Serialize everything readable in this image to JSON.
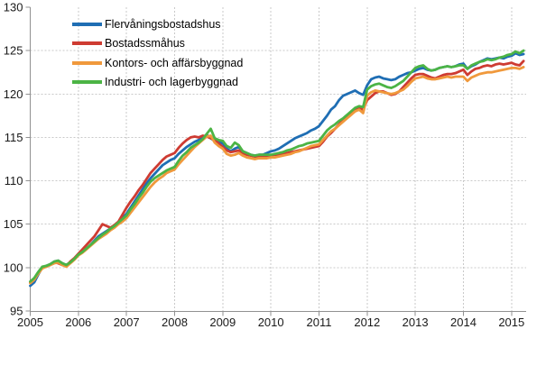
{
  "chart_data": {
    "type": "line",
    "title": "",
    "x_axis": {
      "label": "",
      "start_year": 2005,
      "months_per_point": 1,
      "tick_years": [
        2005,
        2006,
        2007,
        2008,
        2009,
        2010,
        2011,
        2012,
        2013,
        2014,
        2015
      ],
      "tick_labels": [
        "2005",
        "2006",
        "2007",
        "2008",
        "2009",
        "2010",
        "2011",
        "2012",
        "2013",
        "2014",
        "2015"
      ],
      "range": [
        2005.0,
        2015.3
      ]
    },
    "y_axis": {
      "label": "",
      "min": 95,
      "max": 130,
      "tick_step": 5,
      "ticks": [
        95,
        100,
        105,
        110,
        115,
        120,
        125,
        130
      ],
      "tick_labels": [
        "95",
        "100",
        "105",
        "110",
        "115",
        "120",
        "125",
        "130"
      ]
    },
    "grid": true,
    "legend_position": "top-left-inside",
    "series": [
      {
        "key": "flervaningsbostadshus",
        "name": "Flervåningsbostadshus",
        "color": "#1f6eb4",
        "values": [
          97.9,
          98.3,
          99.2,
          100.0,
          100.2,
          100.4,
          100.7,
          100.8,
          100.5,
          100.3,
          100.6,
          101.0,
          101.5,
          101.8,
          102.2,
          102.6,
          103.1,
          103.6,
          103.9,
          104.2,
          104.5,
          104.8,
          105.2,
          105.7,
          106.2,
          106.9,
          107.6,
          108.3,
          109.0,
          109.7,
          110.3,
          110.8,
          111.3,
          111.8,
          112.1,
          112.4,
          112.6,
          113.1,
          113.5,
          113.9,
          114.2,
          114.5,
          114.7,
          115.0,
          115.3,
          114.9,
          114.6,
          114.5,
          114.3,
          113.7,
          113.4,
          113.7,
          113.9,
          113.4,
          113.2,
          113.0,
          112.9,
          113.0,
          113.0,
          113.2,
          113.4,
          113.5,
          113.7,
          114.0,
          114.3,
          114.6,
          114.9,
          115.1,
          115.3,
          115.5,
          115.8,
          116.0,
          116.3,
          116.9,
          117.5,
          118.2,
          118.6,
          119.3,
          119.8,
          120.0,
          120.2,
          120.4,
          120.1,
          119.9,
          121.0,
          121.7,
          121.9,
          122.0,
          121.8,
          121.7,
          121.6,
          121.7,
          122.0,
          122.2,
          122.4,
          122.5,
          122.7,
          122.9,
          123.0,
          122.8,
          122.7,
          122.8,
          123.0,
          123.1,
          123.2,
          123.1,
          123.2,
          123.4,
          123.5,
          122.9,
          123.2,
          123.4,
          123.7,
          123.9,
          124.1,
          124.0,
          124.1,
          124.2,
          124.1,
          124.3,
          124.4,
          124.7,
          124.5,
          124.6
        ]
      },
      {
        "key": "bostadssmahus",
        "name": "Bostadssmåhus",
        "color": "#ce3b32",
        "values": [
          98.3,
          98.7,
          99.4,
          100.0,
          100.1,
          100.3,
          100.6,
          100.5,
          100.3,
          100.2,
          100.7,
          101.1,
          101.6,
          102.1,
          102.6,
          103.1,
          103.6,
          104.3,
          105.0,
          104.8,
          104.6,
          104.9,
          105.3,
          106.1,
          106.9,
          107.6,
          108.2,
          108.9,
          109.5,
          110.2,
          110.9,
          111.4,
          111.9,
          112.4,
          112.8,
          113.0,
          113.2,
          113.8,
          114.3,
          114.7,
          115.0,
          115.1,
          115.0,
          115.2,
          115.1,
          114.9,
          114.7,
          114.3,
          113.9,
          113.5,
          113.3,
          113.4,
          113.5,
          113.2,
          113.0,
          112.9,
          112.8,
          112.8,
          112.8,
          112.8,
          112.9,
          113.0,
          113.0,
          113.1,
          113.2,
          113.3,
          113.4,
          113.5,
          113.6,
          113.7,
          113.8,
          113.9,
          114.0,
          114.5,
          115.1,
          115.5,
          116.0,
          116.5,
          117.0,
          117.4,
          117.7,
          118.1,
          118.4,
          118.2,
          119.3,
          119.7,
          120.1,
          120.3,
          120.3,
          120.1,
          119.9,
          120.0,
          120.3,
          120.8,
          121.3,
          121.8,
          122.2,
          122.3,
          122.3,
          122.1,
          121.9,
          121.8,
          122.0,
          122.2,
          122.3,
          122.3,
          122.4,
          122.6,
          122.8,
          122.2,
          122.6,
          122.9,
          123.0,
          123.2,
          123.3,
          123.2,
          123.4,
          123.5,
          123.4,
          123.5,
          123.6,
          123.4,
          123.3,
          123.8
        ]
      },
      {
        "key": "kontors-och-affarsbyggnad",
        "name": "Kontors- och affärsbyggnad",
        "color": "#f0993c",
        "values": [
          98.2,
          98.6,
          99.3,
          99.9,
          100.1,
          100.3,
          100.5,
          100.6,
          100.3,
          100.1,
          100.5,
          100.9,
          101.4,
          101.7,
          102.1,
          102.5,
          102.9,
          103.3,
          103.6,
          103.9,
          104.3,
          104.6,
          105.0,
          105.3,
          105.7,
          106.3,
          106.9,
          107.5,
          108.1,
          108.7,
          109.3,
          109.8,
          110.2,
          110.5,
          110.9,
          111.1,
          111.3,
          111.9,
          112.4,
          112.9,
          113.4,
          113.9,
          114.3,
          114.7,
          115.1,
          115.2,
          114.4,
          114.0,
          113.7,
          113.1,
          112.9,
          113.0,
          113.2,
          112.9,
          112.7,
          112.6,
          112.5,
          112.6,
          112.6,
          112.6,
          112.7,
          112.7,
          112.8,
          112.9,
          113.0,
          113.1,
          113.3,
          113.4,
          113.6,
          113.8,
          114.0,
          114.1,
          114.2,
          114.7,
          115.2,
          115.7,
          116.0,
          116.4,
          116.8,
          117.2,
          117.6,
          118.0,
          118.2,
          117.8,
          119.8,
          120.2,
          120.4,
          120.3,
          120.2,
          120.1,
          120.0,
          120.1,
          120.3,
          120.5,
          120.9,
          121.4,
          121.8,
          121.9,
          122.0,
          121.8,
          121.7,
          121.7,
          121.8,
          121.9,
          122.0,
          121.9,
          122.0,
          122.0,
          122.0,
          121.5,
          121.9,
          122.1,
          122.3,
          122.4,
          122.5,
          122.5,
          122.6,
          122.7,
          122.8,
          122.9,
          123.0,
          123.0,
          122.9,
          123.1
        ]
      },
      {
        "key": "industri-och-lagerbyggnad",
        "name": "Industri- och lagerbyggnad",
        "color": "#4cb445",
        "values": [
          98.4,
          98.8,
          99.5,
          100.1,
          100.2,
          100.4,
          100.7,
          100.8,
          100.5,
          100.3,
          100.6,
          101.0,
          101.5,
          101.8,
          102.2,
          102.6,
          103.0,
          103.4,
          103.8,
          104.1,
          104.5,
          104.8,
          105.2,
          105.6,
          106.0,
          106.7,
          107.3,
          108.0,
          108.6,
          109.3,
          109.9,
          110.3,
          110.6,
          110.9,
          111.2,
          111.4,
          111.6,
          112.3,
          112.9,
          113.3,
          113.8,
          114.1,
          114.4,
          114.8,
          115.4,
          116.0,
          114.9,
          114.7,
          114.6,
          114.0,
          113.8,
          114.4,
          114.1,
          113.4,
          113.2,
          113.0,
          112.9,
          113.0,
          113.0,
          113.0,
          113.0,
          113.1,
          113.2,
          113.3,
          113.5,
          113.6,
          113.8,
          114.0,
          114.1,
          114.3,
          114.4,
          114.5,
          114.6,
          115.2,
          115.8,
          116.2,
          116.5,
          116.9,
          117.2,
          117.6,
          118.0,
          118.4,
          118.6,
          118.5,
          120.5,
          120.9,
          121.1,
          121.2,
          121.0,
          120.8,
          120.7,
          120.9,
          121.2,
          121.5,
          122.0,
          122.5,
          123.0,
          123.2,
          123.3,
          122.9,
          122.7,
          122.8,
          123.0,
          123.1,
          123.2,
          123.1,
          123.2,
          123.3,
          123.3,
          122.9,
          123.3,
          123.5,
          123.7,
          123.8,
          124.0,
          123.9,
          124.0,
          124.2,
          124.3,
          124.5,
          124.6,
          124.9,
          124.7,
          125.0
        ]
      }
    ]
  }
}
